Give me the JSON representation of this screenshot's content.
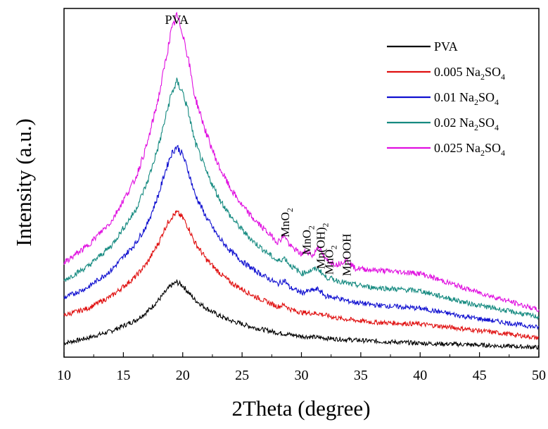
{
  "chart_data": {
    "type": "line",
    "title": "",
    "xlabel": "2Theta (degree)",
    "ylabel": "Intensity (a.u.)",
    "xlim": [
      10,
      50
    ],
    "ylim": [
      0,
      100
    ],
    "xticks": [
      10,
      15,
      20,
      25,
      30,
      35,
      40,
      45,
      50
    ],
    "grid": false,
    "legend_position": "top-right",
    "peak_label": {
      "text": "PVA",
      "x": 19.5
    },
    "annotations": [
      {
        "text": "MnO",
        "sub": "2",
        "x": 28.6
      },
      {
        "text": "MnO",
        "sub": "2",
        "x": 30.4
      },
      {
        "text": "Mn(OH)",
        "sub": "2",
        "x": 31.6
      },
      {
        "text": "MnO",
        "sub": "2",
        "x": 32.3
      },
      {
        "text": "MnOOH",
        "sub": "",
        "x": 33.8
      }
    ],
    "series": [
      {
        "legend_main": "PVA",
        "legend_sub": "",
        "legend_tail": "",
        "color": "#000000",
        "x": [
          10,
          12,
          14,
          16,
          17,
          18,
          18.5,
          19,
          19.5,
          20,
          20.5,
          21,
          22,
          23,
          24,
          25,
          26,
          28,
          30,
          33,
          36,
          40,
          44,
          47,
          50
        ],
        "y": [
          4,
          5.5,
          7.5,
          10.5,
          13,
          16.5,
          18.5,
          20.5,
          21.5,
          20.5,
          18.5,
          16.5,
          14,
          12,
          10.5,
          9.5,
          8.5,
          7,
          6,
          5.2,
          4.6,
          4,
          3.6,
          3.2,
          2.8
        ]
      },
      {
        "legend_main": "0.005 Na",
        "legend_sub": "2",
        "legend_tail": "SO",
        "legend_sub2": "4",
        "color": "#e01010",
        "x": [
          10,
          12,
          14,
          16,
          17,
          18,
          18.5,
          19,
          19.5,
          20,
          20.5,
          21,
          22,
          23,
          24,
          25,
          26,
          28,
          28.6,
          29,
          30,
          31.5,
          33,
          36,
          40,
          44,
          47,
          50
        ],
        "y": [
          12,
          14,
          17.5,
          23,
          27,
          33,
          37,
          40,
          41.5,
          40,
          37,
          33,
          28,
          24.5,
          21.5,
          19.5,
          17.5,
          14.5,
          15,
          13.8,
          12.8,
          12.5,
          11.2,
          10,
          9.5,
          8,
          6.8,
          5.5
        ]
      },
      {
        "legend_main": "0.01  Na",
        "legend_sub": "2",
        "legend_tail": "SO",
        "legend_sub2": "4",
        "color": "#1010d0",
        "x": [
          10,
          12,
          14,
          16,
          17,
          18,
          18.5,
          19,
          19.5,
          20,
          20.5,
          21,
          22,
          23,
          24,
          25,
          26,
          28,
          28.6,
          29,
          30,
          31.4,
          32,
          33,
          34,
          36,
          40,
          44,
          47,
          50
        ],
        "y": [
          17,
          20,
          25,
          32.5,
          38,
          47,
          53,
          58,
          60.5,
          58,
          53,
          47,
          40,
          34.5,
          30.5,
          27.5,
          25,
          21,
          22,
          20,
          18.5,
          19.5,
          17.5,
          17,
          16,
          15,
          14,
          11.5,
          10,
          8.5
        ]
      },
      {
        "legend_main": "0.02  Na",
        "legend_sub": "2",
        "legend_tail": "SO",
        "legend_sub2": "4",
        "color": "#158a80",
        "x": [
          10,
          12,
          14,
          16,
          17,
          18,
          18.5,
          19,
          19.5,
          20,
          20.5,
          21,
          22,
          23,
          24,
          25,
          26,
          28,
          28.6,
          29,
          30,
          31.4,
          32,
          33,
          34,
          36,
          40,
          44,
          47,
          50
        ],
        "y": [
          22,
          26,
          32,
          42,
          50,
          61,
          68,
          75,
          79,
          76,
          70,
          62,
          53,
          46,
          40.5,
          36.5,
          33,
          27.5,
          28.5,
          26.5,
          24,
          25.5,
          23,
          22,
          21,
          20,
          19,
          15.5,
          13.5,
          11.5
        ]
      },
      {
        "legend_main": "0.025 Na",
        "legend_sub": "2",
        "legend_tail": "SO",
        "legend_sub2": "4",
        "color": "#e010e0",
        "x": [
          10,
          12,
          14,
          16,
          17,
          18,
          18.5,
          19,
          19.5,
          20,
          20.5,
          21,
          22,
          23,
          24,
          25,
          26,
          28,
          28.6,
          29,
          30,
          30.4,
          31,
          31.4,
          32,
          33,
          33.8,
          34.5,
          36,
          38,
          40,
          44,
          47,
          50
        ],
        "y": [
          27,
          32,
          39,
          51,
          61,
          75,
          84,
          93,
          98,
          93,
          85,
          75,
          64,
          55,
          48.5,
          43.5,
          39.5,
          33,
          35,
          32,
          29.5,
          30.5,
          29,
          32,
          28,
          26.5,
          28,
          25.5,
          25,
          24.5,
          24,
          19.5,
          16.5,
          13.5
        ]
      }
    ]
  }
}
